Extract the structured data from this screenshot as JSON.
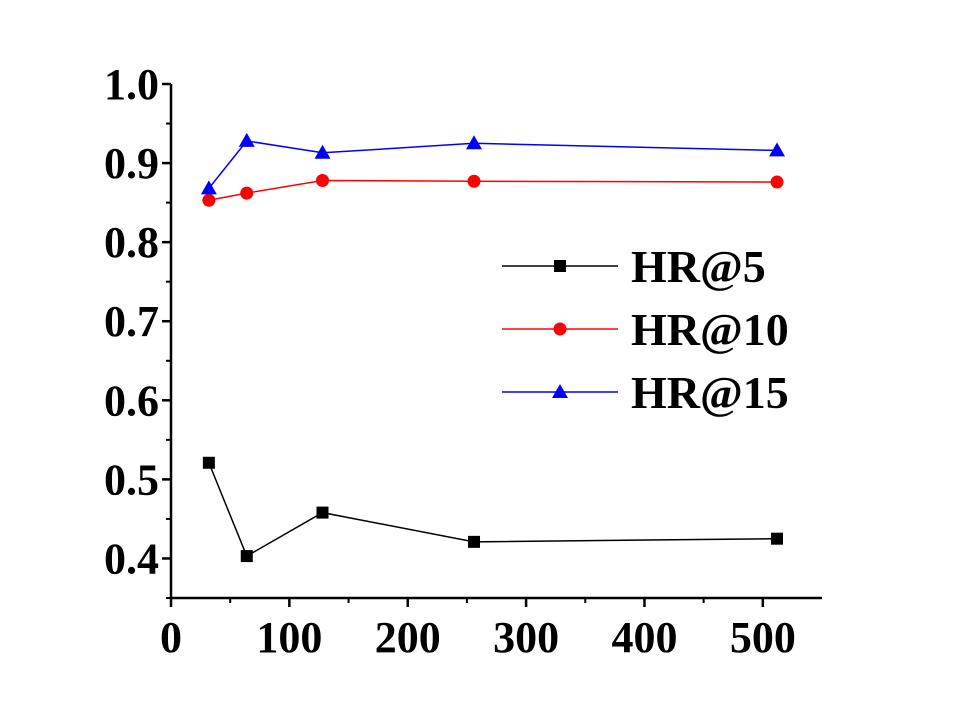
{
  "chart_data": {
    "type": "line",
    "title": "",
    "xlabel": "",
    "ylabel": "",
    "xlim": [
      0,
      550
    ],
    "ylim": [
      0.35,
      1.0
    ],
    "xticks": [
      0,
      100,
      200,
      300,
      400,
      500
    ],
    "yticks": [
      0.4,
      0.5,
      0.6,
      0.7,
      0.8,
      0.9,
      1.0
    ],
    "xtick_labels": [
      "0",
      "100",
      "200",
      "300",
      "400",
      "500"
    ],
    "ytick_labels": [
      "0.4",
      "0.5",
      "0.6",
      "0.7",
      "0.8",
      "0.9",
      "1.0"
    ],
    "grid": false,
    "legend_position": "right",
    "x": [
      32,
      64,
      128,
      256,
      512
    ],
    "series": [
      {
        "name": "HR@5",
        "color": "#000000",
        "marker": "square",
        "values": [
          0.521,
          0.403,
          0.458,
          0.421,
          0.425
        ]
      },
      {
        "name": "HR@10",
        "color": "#ff0000",
        "marker": "circle",
        "values": [
          0.853,
          0.862,
          0.878,
          0.877,
          0.876
        ]
      },
      {
        "name": "HR@15",
        "color": "#0000ff",
        "marker": "triangle",
        "values": [
          0.868,
          0.928,
          0.913,
          0.925,
          0.916
        ]
      }
    ]
  }
}
